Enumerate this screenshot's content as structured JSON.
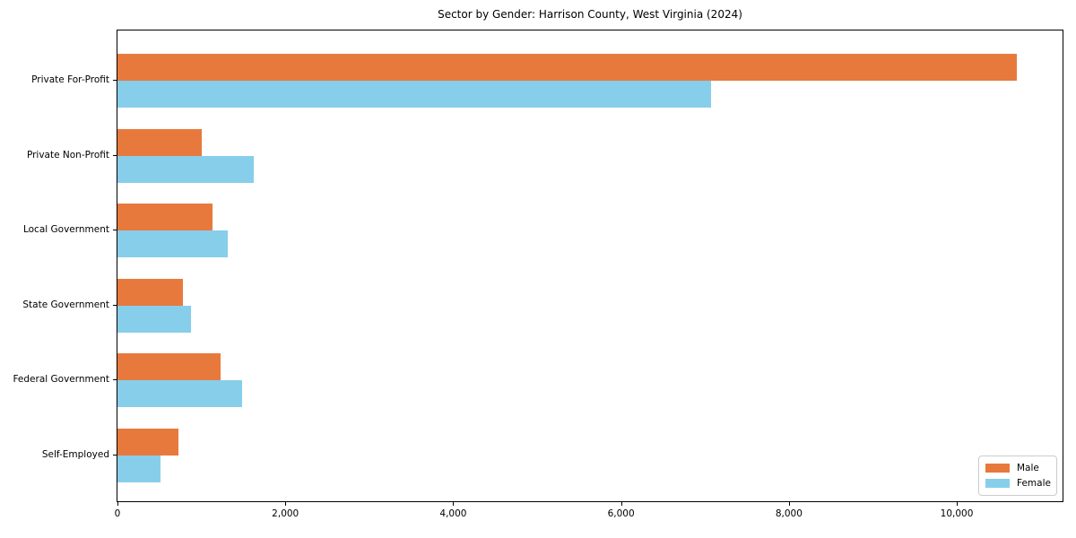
{
  "chart_data": {
    "type": "bar",
    "orientation": "horizontal",
    "title": "Sector by Gender: Harrison County, West Virginia (2024)",
    "categories": [
      "Private For-Profit",
      "Private Non-Profit",
      "Local Government",
      "State Government",
      "Federal Government",
      "Self-Employed"
    ],
    "series": [
      {
        "name": "Male",
        "color": "#e8793d",
        "values": [
          10720,
          1000,
          1130,
          780,
          1230,
          725
        ]
      },
      {
        "name": "Female",
        "color": "#87ceeb",
        "values": [
          7070,
          1620,
          1310,
          875,
          1480,
          510
        ]
      }
    ],
    "xlim": [
      0,
      11260
    ],
    "xticks": [
      {
        "value": 0,
        "label": "0"
      },
      {
        "value": 2000,
        "label": "2,000"
      },
      {
        "value": 4000,
        "label": "4,000"
      },
      {
        "value": 6000,
        "label": "6,000"
      },
      {
        "value": 8000,
        "label": "8,000"
      },
      {
        "value": 10000,
        "label": "10,000"
      }
    ],
    "legend_position": "lower right",
    "grid": false,
    "background_color": "#ffffff",
    "axis_color": "#000000",
    "xlabel": "",
    "ylabel": ""
  }
}
